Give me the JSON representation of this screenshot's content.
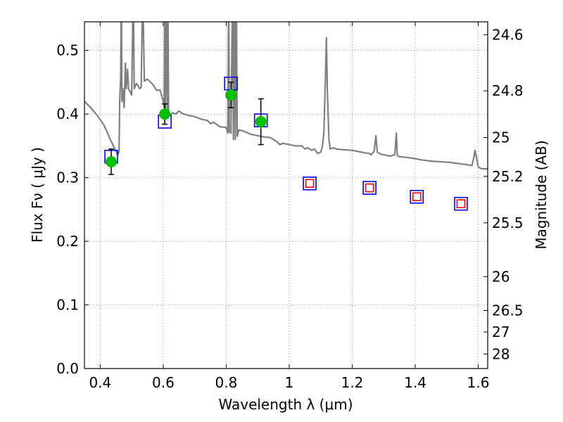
{
  "chart_data": {
    "type": "scatter",
    "xlabel": "Wavelength  λ (μm)",
    "ylabel_left": "Flux  Fν  ( μJy )",
    "ylabel_right": "Magnitude (AB)",
    "xlim": [
      0.35,
      1.63
    ],
    "ylim": [
      0.0,
      0.545
    ],
    "grid": true,
    "x_ticks": [
      0.4,
      0.6,
      0.8,
      1.0,
      1.2,
      1.4,
      1.6
    ],
    "x_tick_labels": [
      "0.4",
      "0.6",
      "0.8",
      "1",
      "1.2",
      "1.4",
      "1.6"
    ],
    "y_ticks": [
      0.0,
      0.1,
      0.2,
      0.3,
      0.4,
      0.5
    ],
    "y_tick_labels": [
      "0.0",
      "0.1",
      "0.2",
      "0.3",
      "0.4",
      "0.5"
    ],
    "right_ticks": [
      {
        "label": "24.6",
        "flux": 0.5248
      },
      {
        "label": "24.8",
        "flux": 0.4365
      },
      {
        "label": "25",
        "flux": 0.3631
      },
      {
        "label": "25.2",
        "flux": 0.302
      },
      {
        "label": "25.5",
        "flux": 0.2291
      },
      {
        "label": "26",
        "flux": 0.1445
      },
      {
        "label": "26.5",
        "flux": 0.0912
      },
      {
        "label": "27",
        "flux": 0.0575
      },
      {
        "label": "28",
        "flux": 0.0229
      }
    ],
    "series": [
      {
        "name": "model_spectrum",
        "style": "line",
        "color": "#808080",
        "points": [
          [
            0.35,
            0.42
          ],
          [
            0.37,
            0.41
          ],
          [
            0.39,
            0.398
          ],
          [
            0.41,
            0.384
          ],
          [
            0.42,
            0.374
          ],
          [
            0.43,
            0.362
          ],
          [
            0.44,
            0.352
          ],
          [
            0.45,
            0.342
          ],
          [
            0.455,
            0.336
          ],
          [
            0.46,
            0.34
          ],
          [
            0.462,
            0.42
          ],
          [
            0.465,
            0.46
          ],
          [
            0.467,
            0.6
          ],
          [
            0.469,
            0.42
          ],
          [
            0.472,
            0.44
          ],
          [
            0.476,
            0.41
          ],
          [
            0.48,
            0.48
          ],
          [
            0.483,
            0.44
          ],
          [
            0.487,
            0.47
          ],
          [
            0.49,
            0.44
          ],
          [
            0.495,
            0.435
          ],
          [
            0.5,
            0.43
          ],
          [
            0.505,
            0.6
          ],
          [
            0.508,
            0.44
          ],
          [
            0.515,
            0.448
          ],
          [
            0.52,
            0.445
          ],
          [
            0.525,
            0.44
          ],
          [
            0.53,
            0.442
          ],
          [
            0.535,
            0.6
          ],
          [
            0.54,
            0.452
          ],
          [
            0.55,
            0.455
          ],
          [
            0.56,
            0.45
          ],
          [
            0.57,
            0.445
          ],
          [
            0.575,
            0.44
          ],
          [
            0.58,
            0.437
          ],
          [
            0.59,
            0.438
          ],
          [
            0.6,
            0.42
          ],
          [
            0.603,
            0.41
          ],
          [
            0.605,
            0.6
          ],
          [
            0.607,
            0.41
          ],
          [
            0.61,
            0.6
          ],
          [
            0.613,
            0.405
          ],
          [
            0.615,
            0.6
          ],
          [
            0.617,
            0.4
          ],
          [
            0.62,
            0.398
          ],
          [
            0.63,
            0.402
          ],
          [
            0.64,
            0.4
          ],
          [
            0.65,
            0.405
          ],
          [
            0.66,
            0.401
          ],
          [
            0.68,
            0.398
          ],
          [
            0.7,
            0.396
          ],
          [
            0.72,
            0.392
          ],
          [
            0.74,
            0.39
          ],
          [
            0.75,
            0.385
          ],
          [
            0.76,
            0.387
          ],
          [
            0.78,
            0.38
          ],
          [
            0.8,
            0.379
          ],
          [
            0.805,
            0.37
          ],
          [
            0.808,
            0.6
          ],
          [
            0.81,
            0.372
          ],
          [
            0.815,
            0.37
          ],
          [
            0.82,
            0.6
          ],
          [
            0.823,
            0.36
          ],
          [
            0.826,
            0.6
          ],
          [
            0.829,
            0.36
          ],
          [
            0.832,
            0.6
          ],
          [
            0.835,
            0.365
          ],
          [
            0.84,
            0.375
          ],
          [
            0.85,
            0.374
          ],
          [
            0.87,
            0.37
          ],
          [
            0.88,
            0.368
          ],
          [
            0.9,
            0.366
          ],
          [
            0.92,
            0.364
          ],
          [
            0.94,
            0.363
          ],
          [
            0.96,
            0.357
          ],
          [
            0.97,
            0.352
          ],
          [
            0.98,
            0.354
          ],
          [
            1.0,
            0.352
          ],
          [
            1.02,
            0.35
          ],
          [
            1.04,
            0.35
          ],
          [
            1.05,
            0.345
          ],
          [
            1.06,
            0.347
          ],
          [
            1.07,
            0.343
          ],
          [
            1.08,
            0.345
          ],
          [
            1.09,
            0.338
          ],
          [
            1.1,
            0.34
          ],
          [
            1.105,
            0.348
          ],
          [
            1.11,
            0.37
          ],
          [
            1.115,
            0.46
          ],
          [
            1.118,
            0.52
          ],
          [
            1.121,
            0.44
          ],
          [
            1.126,
            0.36
          ],
          [
            1.13,
            0.345
          ],
          [
            1.14,
            0.347
          ],
          [
            1.15,
            0.345
          ],
          [
            1.17,
            0.344
          ],
          [
            1.2,
            0.343
          ],
          [
            1.22,
            0.341
          ],
          [
            1.24,
            0.339
          ],
          [
            1.255,
            0.338
          ],
          [
            1.26,
            0.336
          ],
          [
            1.27,
            0.342
          ],
          [
            1.275,
            0.366
          ],
          [
            1.28,
            0.34
          ],
          [
            1.29,
            0.337
          ],
          [
            1.3,
            0.336
          ],
          [
            1.32,
            0.334
          ],
          [
            1.335,
            0.336
          ],
          [
            1.34,
            0.37
          ],
          [
            1.343,
            0.335
          ],
          [
            1.35,
            0.333
          ],
          [
            1.37,
            0.332
          ],
          [
            1.4,
            0.33
          ],
          [
            1.42,
            0.328
          ],
          [
            1.45,
            0.326
          ],
          [
            1.48,
            0.325
          ],
          [
            1.51,
            0.324
          ],
          [
            1.54,
            0.322
          ],
          [
            1.57,
            0.32
          ],
          [
            1.58,
            0.319
          ],
          [
            1.585,
            0.33
          ],
          [
            1.59,
            0.343
          ],
          [
            1.595,
            0.33
          ],
          [
            1.6,
            0.317
          ],
          [
            1.61,
            0.314
          ],
          [
            1.63,
            0.314
          ]
        ]
      },
      {
        "name": "model_photometry",
        "style": "open-square",
        "color": "#0000ff",
        "x": [
          0.435,
          0.605,
          0.815,
          0.91,
          1.065,
          1.255,
          1.405,
          1.545
        ],
        "y": [
          0.333,
          0.388,
          0.448,
          0.39,
          0.291,
          0.284,
          0.27,
          0.259
        ]
      },
      {
        "name": "upper_limits",
        "style": "open-square",
        "color": "#ff0000",
        "x": [
          1.065,
          1.255,
          1.405,
          1.545
        ],
        "y": [
          0.291,
          0.284,
          0.27,
          0.259
        ]
      },
      {
        "name": "observed",
        "style": "filled-circle",
        "color": "#00c000",
        "x": [
          0.435,
          0.605,
          0.815,
          0.91
        ],
        "y": [
          0.325,
          0.4,
          0.43,
          0.388
        ],
        "yerr": [
          0.02,
          0.016,
          0.02,
          0.036
        ]
      }
    ]
  }
}
